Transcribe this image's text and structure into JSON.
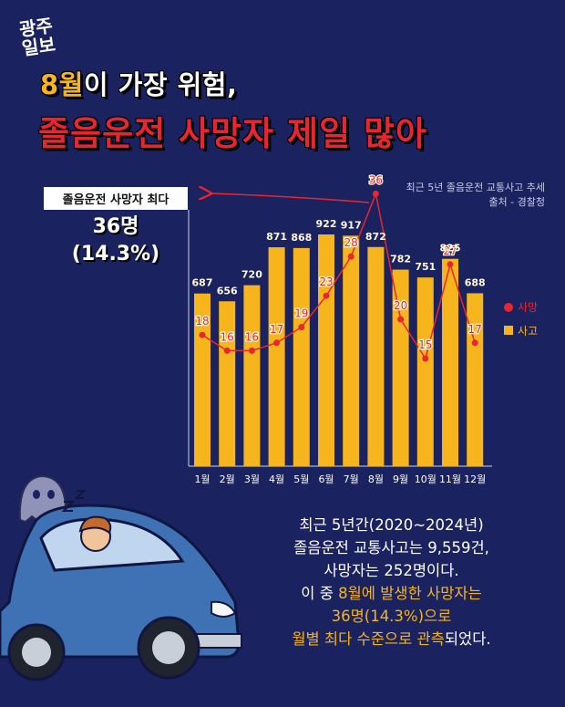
{
  "logo": {
    "line1": "광주",
    "line2": "일보"
  },
  "headline": {
    "line1_highlight": "8월",
    "line1_rest": "이 가장 위험,",
    "line2": "졸음운전 사망자 제일 많아"
  },
  "source": {
    "line1": "최근 5년 졸음운전 교통사고 추세",
    "line2": "출처 - 경찰청"
  },
  "callout": {
    "label": "졸음운전 사망자 최다",
    "value": "36명",
    "percent": "(14.3%)"
  },
  "summary": {
    "line1": "최근 5년간(2020~2024년)",
    "line2": "졸음운전 교통사고는 9,559건,",
    "line3": "사망자는 252명이다.",
    "line4_pre": "이 중 ",
    "line4_hl": "8월에 발생한 사망자는",
    "line5_hl": "36명(14.3%)으로",
    "line6_hl": "월별 최다 수준으로 관측",
    "line6_post": "되었다."
  },
  "colors": {
    "background": "#1b2260",
    "bar": "#f6b51c",
    "line": "#e8262f",
    "accent": "#f6b51c"
  },
  "chart_data": {
    "type": "bar",
    "categories": [
      "1월",
      "2월",
      "3월",
      "4월",
      "5월",
      "6월",
      "7월",
      "8월",
      "9월",
      "10월",
      "11월",
      "12월"
    ],
    "series": [
      {
        "name": "사고",
        "type": "bar",
        "values": [
          687,
          656,
          720,
          871,
          868,
          922,
          917,
          872,
          782,
          751,
          825,
          688
        ]
      },
      {
        "name": "사망",
        "type": "line",
        "values": [
          18,
          16,
          16,
          17,
          19,
          23,
          28,
          36,
          20,
          15,
          27,
          17
        ]
      }
    ],
    "legend": [
      "사망",
      "사고"
    ],
    "legend_position": "right"
  }
}
